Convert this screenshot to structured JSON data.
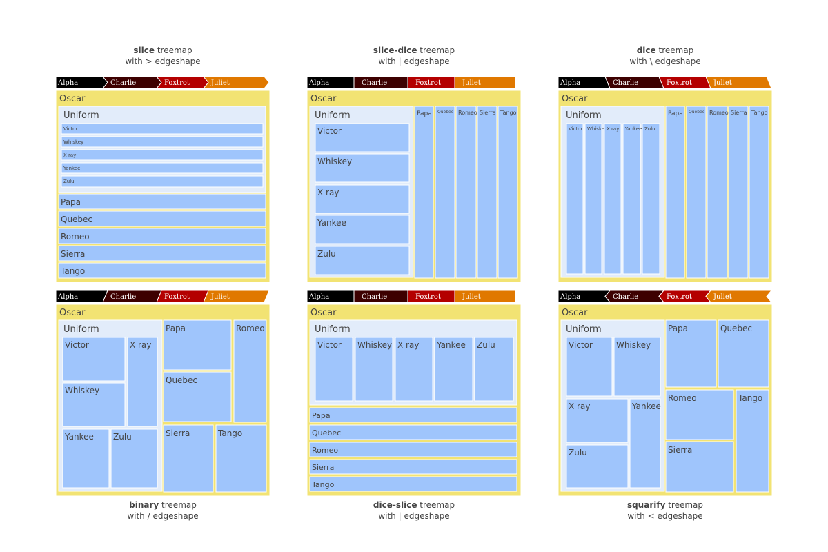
{
  "chart_data": [
    {
      "type": "treemap",
      "tiling": "slice",
      "edgeshape": ">",
      "title_bold": "slice",
      "title_rest": " treemap",
      "subtitle": "with > edgeshape"
    },
    {
      "type": "treemap",
      "tiling": "slice-dice",
      "edgeshape": "|",
      "title_bold": "slice-dice",
      "title_rest": " treemap",
      "subtitle": "with | edgeshape"
    },
    {
      "type": "treemap",
      "tiling": "dice",
      "edgeshape": "\\",
      "title_bold": "dice",
      "title_rest": " treemap",
      "subtitle": "with \\ edgeshape"
    },
    {
      "type": "treemap",
      "tiling": "binary",
      "edgeshape": "/",
      "title_bold": "binary",
      "title_rest": " treemap",
      "subtitle": "with / edgeshape"
    },
    {
      "type": "treemap",
      "tiling": "dice-slice",
      "edgeshape": "|",
      "title_bold": "dice-slice",
      "title_rest": " treemap",
      "subtitle": "with | edgeshape"
    },
    {
      "type": "treemap",
      "tiling": "squarify",
      "edgeshape": "<",
      "title_bold": "squarify",
      "title_rest": " treemap",
      "subtitle": "with < edgeshape"
    }
  ],
  "pathbar": {
    "items": [
      "Alpha",
      "Charlie",
      "Foxtrot",
      "Juliet"
    ],
    "colors": [
      "#000000",
      "#3d0000",
      "#b40000",
      "#e07800"
    ]
  },
  "hierarchy": {
    "root": "Oscar",
    "children": [
      "Uniform",
      "Papa",
      "Quebec",
      "Romeo",
      "Sierra",
      "Tango"
    ],
    "uniform_children": [
      "Victor",
      "Whiskey",
      "X ray",
      "Yankee",
      "Zulu"
    ]
  },
  "colors": {
    "oscar": "#f2e373",
    "uniform": "#e2ecfa",
    "leaf": "#9fc5fc",
    "text": "#444444"
  }
}
